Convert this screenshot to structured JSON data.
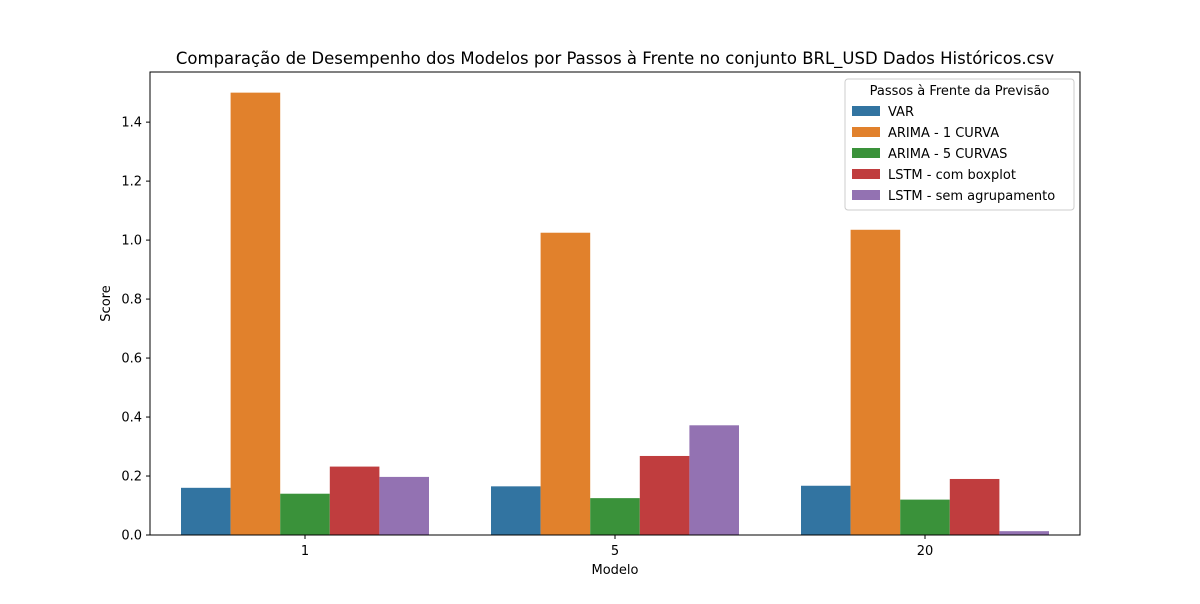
{
  "chart_data": {
    "type": "bar",
    "title": "Comparação de Desempenho dos Modelos por Passos à Frente no conjunto BRL_USD Dados Históricos.csv",
    "xlabel": "Modelo",
    "ylabel": "Score",
    "categories": [
      "1",
      "5",
      "20"
    ],
    "ylim": [
      0,
      1.5
    ],
    "yticks": [
      "0.0",
      "0.2",
      "0.4",
      "0.6",
      "0.8",
      "1.0",
      "1.2",
      "1.4"
    ],
    "grid": false,
    "legend": {
      "title": "Passos à Frente da Previsão",
      "placement": "top-right"
    },
    "series": [
      {
        "name": "VAR",
        "color": "#3274a1",
        "values": [
          0.16,
          0.165,
          0.167
        ]
      },
      {
        "name": "ARIMA - 1 CURVA",
        "color": "#e1812c",
        "values": [
          1.5,
          1.025,
          1.035
        ]
      },
      {
        "name": "ARIMA - 5 CURVAS",
        "color": "#3a923a",
        "values": [
          0.14,
          0.125,
          0.12
        ]
      },
      {
        "name": "LSTM - com boxplot",
        "color": "#c03d3e",
        "values": [
          0.232,
          0.268,
          0.19
        ]
      },
      {
        "name": "LSTM - sem agrupamento",
        "color": "#9372b2",
        "values": [
          0.197,
          0.372,
          0.013
        ]
      }
    ]
  }
}
